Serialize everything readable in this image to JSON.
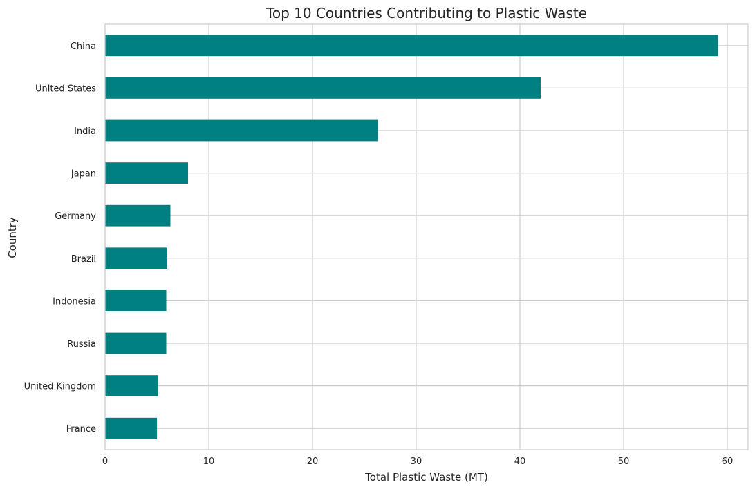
{
  "chart_data": {
    "type": "bar",
    "orientation": "horizontal",
    "title": "Top 10 Countries Contributing to Plastic Waste",
    "xlabel": "Total Plastic Waste (MT)",
    "ylabel": "Country",
    "categories": [
      "China",
      "United States",
      "India",
      "Japan",
      "Germany",
      "Brazil",
      "Indonesia",
      "Russia",
      "United Kingdom",
      "France"
    ],
    "values": [
      59.1,
      42.0,
      26.3,
      8.0,
      6.3,
      6.0,
      5.9,
      5.9,
      5.1,
      5.0
    ],
    "xlim": [
      0,
      62
    ],
    "xticks": [
      0,
      10,
      20,
      30,
      40,
      50,
      60
    ],
    "grid": true,
    "legend": "none",
    "colors": {
      "bar": "#008080",
      "grid": "#cccccc",
      "axes_edge": "#cccccc",
      "text": "#262626"
    }
  }
}
